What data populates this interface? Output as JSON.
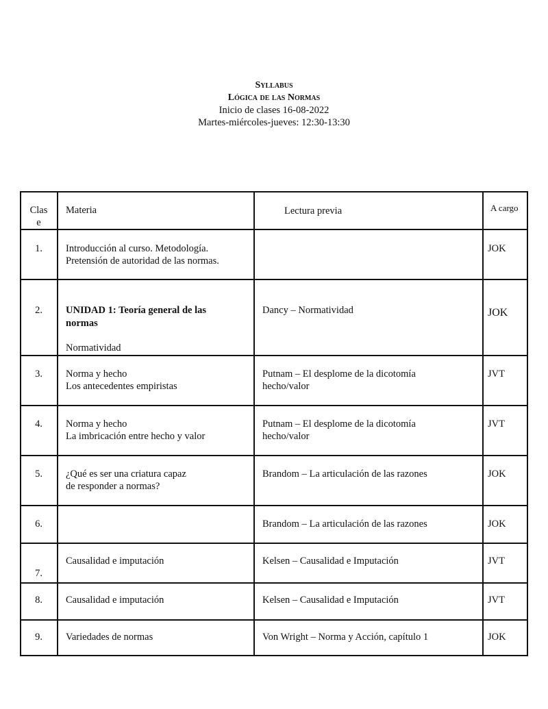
{
  "header": {
    "title": "Syllabus",
    "subtitle": "Lógica de las Normas",
    "start": "Inicio de clases 16-08-2022",
    "schedule": "Martes-miércoles-jueves: 12:30-13:30"
  },
  "table": {
    "columns": {
      "clase_1": "Clas",
      "clase_2": "e",
      "materia": "Materia",
      "lectura": "Lectura previa",
      "cargo": "A cargo"
    },
    "rows": [
      {
        "num": "1.",
        "materia": [
          "Introducción al curso. Metodología.",
          "Pretensión de autoridad de las normas."
        ],
        "lectura": [],
        "cargo": "JOK"
      },
      {
        "num": "2.",
        "materia_bold": [
          "UNIDAD 1: Teoría general de las",
          "normas"
        ],
        "materia": [
          "Normatividad"
        ],
        "lectura": [
          "Dancy – Normatividad"
        ],
        "cargo": "JOK"
      },
      {
        "num": "3.",
        "materia": [
          "Norma y hecho",
          "Los antecedentes empiristas"
        ],
        "lectura": [
          "Putnam – El desplome de la dicotomía",
          "hecho/valor"
        ],
        "cargo": "JVT"
      },
      {
        "num": "4.",
        "materia": [
          "Norma y hecho",
          "La imbricación entre hecho y valor"
        ],
        "lectura": [
          "Putnam – El desplome de la dicotomía",
          "hecho/valor"
        ],
        "cargo": "JVT"
      },
      {
        "num": "5.",
        "materia": [
          "¿Qué es ser una criatura capaz",
          "de responder a normas?"
        ],
        "lectura": [
          "Brandom – La articulación de las razones"
        ],
        "cargo": "JOK"
      },
      {
        "num": "6.",
        "materia": [],
        "lectura": [
          "Brandom – La articulación de las razones"
        ],
        "cargo": "JOK"
      },
      {
        "num": "7.",
        "materia": [
          "Causalidad e imputación"
        ],
        "lectura": [
          "Kelsen – Causalidad e Imputación"
        ],
        "cargo": "JVT"
      },
      {
        "num": "8.",
        "materia": [
          "Causalidad e imputación"
        ],
        "lectura": [
          "Kelsen – Causalidad e Imputación"
        ],
        "cargo": "JVT"
      },
      {
        "num": "9.",
        "materia": [
          "Variedades de normas"
        ],
        "lectura": [
          "Von Wright – Norma y Acción, capítulo 1"
        ],
        "cargo": "JOK"
      }
    ]
  }
}
